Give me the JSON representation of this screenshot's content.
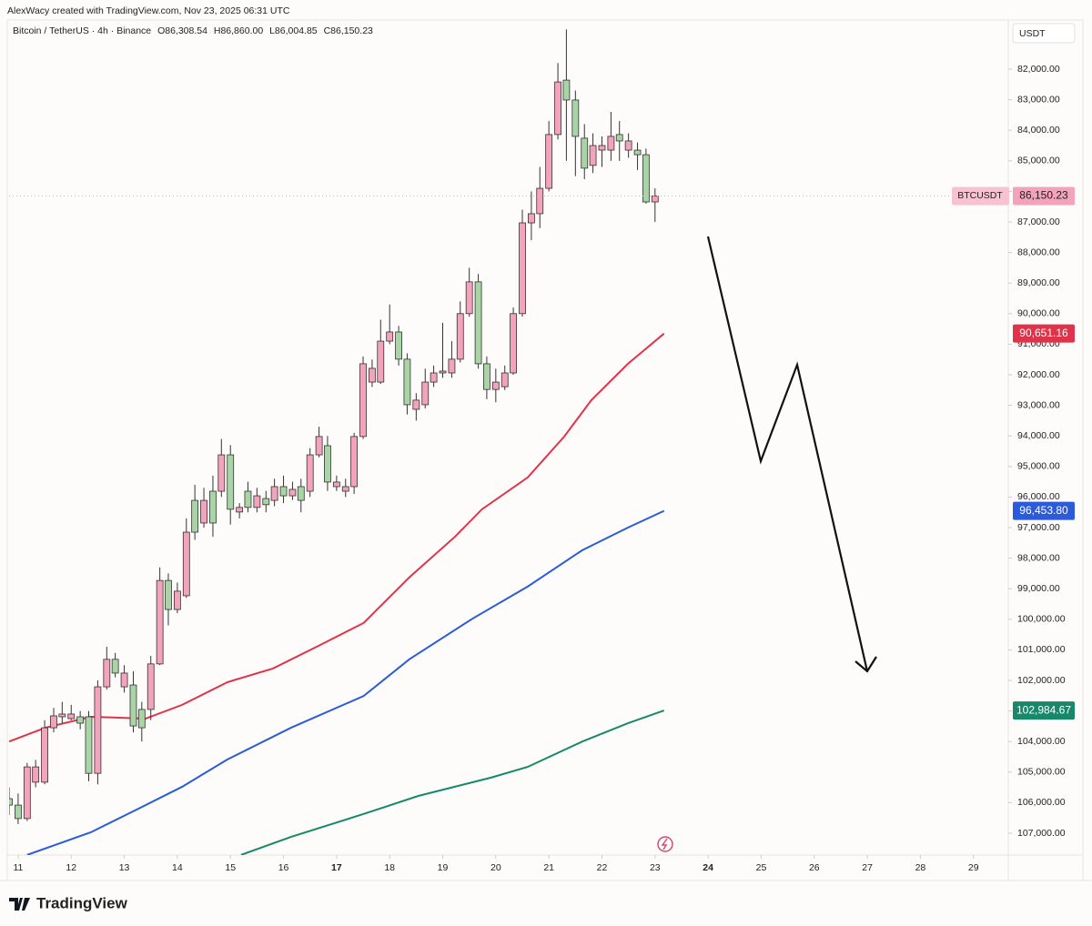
{
  "credit": "AlexWacy created with TradingView.com, Nov 23, 2025 06:31 UTC",
  "logo": "TradingView",
  "chart_data": {
    "type": "candlestick",
    "title": "Bitcoin / TetherUS · 4h · Binance",
    "ohlc_header": [
      "O86,308.54",
      "H86,860.00",
      "L86,004.85",
      "C86,150.23"
    ],
    "currency": "USDT",
    "inverted": true,
    "ylim": [
      80393,
      107714
    ],
    "yticks": [
      {
        "value": 82000,
        "label": "82,000.00"
      },
      {
        "value": 83000,
        "label": "83,000.00"
      },
      {
        "value": 84000,
        "label": "84,000.00"
      },
      {
        "value": 85000,
        "label": "85,000.00"
      },
      {
        "value": 86000,
        "label": "86,000.00"
      },
      {
        "value": 87000,
        "label": "87,000.00"
      },
      {
        "value": 88000,
        "label": "88,000.00"
      },
      {
        "value": 89000,
        "label": "89,000.00"
      },
      {
        "value": 90000,
        "label": "90,000.00"
      },
      {
        "value": 91000,
        "label": "91,000.00"
      },
      {
        "value": 92000,
        "label": "92,000.00"
      },
      {
        "value": 93000,
        "label": "93,000.00"
      },
      {
        "value": 94000,
        "label": "94,000.00"
      },
      {
        "value": 95000,
        "label": "95,000.00"
      },
      {
        "value": 96000,
        "label": "96,000.00"
      },
      {
        "value": 97000,
        "label": "97,000.00"
      },
      {
        "value": 98000,
        "label": "98,000.00"
      },
      {
        "value": 99000,
        "label": "99,000.00"
      },
      {
        "value": 100000,
        "label": "100,000.00"
      },
      {
        "value": 101000,
        "label": "101,000.00"
      },
      {
        "value": 102000,
        "label": "102,000.00"
      },
      {
        "value": 103000,
        "label": "103,000.00"
      },
      {
        "value": 104000,
        "label": "104,000.00"
      },
      {
        "value": 105000,
        "label": "105,000.00"
      },
      {
        "value": 106000,
        "label": "106,000.00"
      },
      {
        "value": 107000,
        "label": "107,000.00"
      }
    ],
    "xlim": [
      10.83,
      29.69
    ],
    "xticks": [
      11,
      12,
      13,
      14,
      15,
      16,
      17,
      18,
      19,
      20,
      21,
      22,
      23,
      24,
      25,
      26,
      27,
      28,
      29
    ],
    "bold_xticks": [
      17,
      24
    ],
    "up_color": "#a9d4a6",
    "down_color": "#f3a3bb",
    "x": [
      10.83,
      11,
      11.17,
      11.33,
      11.5,
      11.67,
      11.83,
      12,
      12.17,
      12.33,
      12.5,
      12.67,
      12.83,
      13,
      13.17,
      13.33,
      13.5,
      13.67,
      13.83,
      14,
      14.17,
      14.33,
      14.5,
      14.67,
      14.83,
      15,
      15.17,
      15.33,
      15.5,
      15.67,
      15.83,
      16,
      16.17,
      16.33,
      16.5,
      16.67,
      16.83,
      17,
      17.17,
      17.33,
      17.5,
      17.67,
      17.83,
      18,
      18.17,
      18.33,
      18.5,
      18.67,
      18.83,
      19,
      19.17,
      19.33,
      19.5,
      19.67,
      19.83,
      20,
      20.17,
      20.33,
      20.5,
      20.67,
      20.83,
      21,
      21.17,
      21.33,
      21.5,
      21.67,
      21.83,
      22,
      22.17,
      22.33,
      22.5,
      22.67,
      22.83,
      23
    ],
    "ohlc": [
      [
        105870,
        106400,
        105500,
        106080
      ],
      [
        106080,
        106700,
        105700,
        106520
      ],
      [
        106520,
        106600,
        104700,
        104830
      ],
      [
        105330,
        105500,
        104600,
        104830
      ],
      [
        105330,
        105400,
        103300,
        103550
      ],
      [
        103550,
        103700,
        102900,
        103160
      ],
      [
        103190,
        103400,
        102700,
        103100
      ],
      [
        103250,
        103300,
        102800,
        103100
      ],
      [
        103190,
        103600,
        103000,
        103400
      ],
      [
        103190,
        105300,
        103000,
        105040
      ],
      [
        105040,
        105400,
        102000,
        102210
      ],
      [
        102210,
        102300,
        100900,
        101310
      ],
      [
        101310,
        101900,
        101100,
        101760
      ],
      [
        102210,
        102400,
        101500,
        101760
      ],
      [
        102150,
        103700,
        101700,
        103490
      ],
      [
        102950,
        104000,
        102700,
        103550
      ],
      [
        102950,
        103300,
        101200,
        101460
      ],
      [
        101460,
        101500,
        98300,
        98730
      ],
      [
        98730,
        100200,
        98500,
        99680
      ],
      [
        99680,
        99800,
        98800,
        99080
      ],
      [
        99230,
        99300,
        96700,
        97150
      ],
      [
        96110,
        97400,
        95600,
        97150
      ],
      [
        96850,
        97000,
        95700,
        96110
      ],
      [
        95810,
        97300,
        95300,
        96850
      ],
      [
        95810,
        96000,
        94100,
        94620
      ],
      [
        94620,
        96900,
        94300,
        96400
      ],
      [
        96490,
        96700,
        96200,
        96340
      ],
      [
        95810,
        96500,
        95500,
        96340
      ],
      [
        96340,
        96500,
        95700,
        95960
      ],
      [
        96050,
        96500,
        95800,
        96250
      ],
      [
        96110,
        96300,
        95400,
        95660
      ],
      [
        95660,
        96200,
        95300,
        95960
      ],
      [
        95960,
        96100,
        95500,
        95750
      ],
      [
        95660,
        96500,
        95400,
        96110
      ],
      [
        95810,
        96000,
        94400,
        94620
      ],
      [
        94620,
        94700,
        93700,
        94020
      ],
      [
        94320,
        95800,
        94000,
        95510
      ],
      [
        95660,
        95800,
        95300,
        95510
      ],
      [
        95810,
        96000,
        95400,
        95660
      ],
      [
        95660,
        95900,
        93900,
        94020
      ],
      [
        94020,
        94100,
        91400,
        91640
      ],
      [
        92240,
        92400,
        91500,
        91790
      ],
      [
        92240,
        92300,
        90200,
        90900
      ],
      [
        90900,
        91000,
        89700,
        90600
      ],
      [
        90600,
        91700,
        90400,
        91490
      ],
      [
        91490,
        93300,
        91300,
        92980
      ],
      [
        93130,
        93500,
        92600,
        92830
      ],
      [
        92980,
        93100,
        91800,
        92240
      ],
      [
        92240,
        92400,
        91700,
        91940
      ],
      [
        91940,
        92100,
        90300,
        91880
      ],
      [
        91940,
        92100,
        90900,
        91490
      ],
      [
        91490,
        91600,
        89600,
        90000
      ],
      [
        90000,
        90100,
        88500,
        88960
      ],
      [
        88960,
        91800,
        88700,
        91640
      ],
      [
        91640,
        92800,
        91400,
        92480
      ],
      [
        92480,
        92900,
        91800,
        92240
      ],
      [
        92390,
        92500,
        91700,
        91940
      ],
      [
        91940,
        92000,
        89800,
        90000
      ],
      [
        90000,
        90100,
        86600,
        87030
      ],
      [
        87030,
        87600,
        86000,
        86730
      ],
      [
        86730,
        87200,
        85200,
        85900
      ],
      [
        85900,
        86000,
        83700,
        84140
      ],
      [
        84140,
        84300,
        81800,
        82420
      ],
      [
        82360,
        85000,
        80700,
        83010
      ],
      [
        83010,
        85500,
        82700,
        84200
      ],
      [
        84260,
        85600,
        83800,
        85240
      ],
      [
        85150,
        85400,
        84100,
        84500
      ],
      [
        84650,
        85200,
        84200,
        84500
      ],
      [
        84650,
        85000,
        83400,
        84200
      ],
      [
        84140,
        85000,
        83700,
        84350
      ],
      [
        84650,
        84900,
        84100,
        84350
      ],
      [
        84650,
        85300,
        84400,
        84800
      ],
      [
        84800,
        86400,
        84600,
        86345
      ],
      [
        86345,
        87000,
        85900,
        86150.23
      ]
    ],
    "price_tag": {
      "symbol": "BTCUSDT",
      "label": "86,150.23",
      "color": "#f3a3bb"
    },
    "series": [
      {
        "color": "#e0334a",
        "x": [
          10.83,
          11.51,
          12.37,
          13.4,
          14.09,
          14.94,
          15.8,
          16.66,
          17.51,
          18.37,
          19.23,
          19.74,
          20.6,
          21.29,
          21.8,
          22.49,
          23.17
        ],
        "values": [
          104000,
          103550,
          103190,
          103250,
          102800,
          102060,
          101610,
          100870,
          100120,
          98630,
          97300,
          96400,
          95360,
          94020,
          92830,
          91640,
          90651.16
        ],
        "value_labels": {
          "16": "90,651.16"
        }
      },
      {
        "color": "#2c5bd9",
        "x": [
          11.17,
          12.37,
          13.23,
          14.09,
          14.94,
          16.14,
          17.51,
          18.37,
          19.57,
          20.6,
          21.63,
          22.49,
          23.17
        ],
        "values": [
          107710,
          106970,
          106230,
          105480,
          104590,
          103550,
          102510,
          101310,
          99970,
          98930,
          97740,
          97000,
          96453.8
        ],
        "value_labels": {
          "12": "96,453.80"
        }
      },
      {
        "color": "#17896a",
        "x": [
          15.2,
          16.14,
          17.51,
          18.54,
          19.91,
          20.6,
          21.63,
          22.49,
          23.17
        ],
        "values": [
          107710,
          107120,
          106370,
          105780,
          105180,
          104830,
          104000,
          103400,
          102984.67
        ],
        "value_labels": {
          "8": "102,984.67"
        }
      }
    ]
  }
}
